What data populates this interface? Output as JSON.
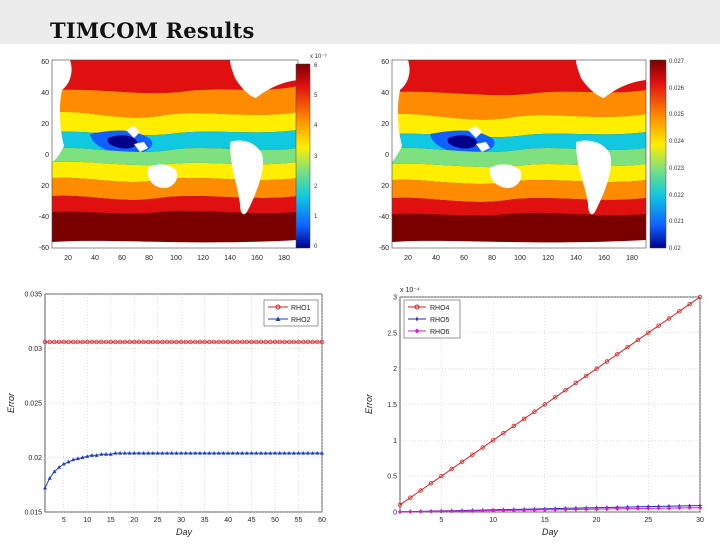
{
  "slide": {
    "title": "TIMCOM Results"
  },
  "colors": {
    "rho1": "#d62020",
    "rho2": "#1f3fbf",
    "rho4": "#d62020",
    "rho5": "#2a2ab8",
    "rho6": "#d020d0"
  },
  "maps": [
    {
      "y_ticks": [
        "60",
        "40",
        "20",
        "0",
        "20",
        "-40",
        "-60"
      ],
      "x_ticks": [
        "20",
        "40",
        "60",
        "80",
        "100",
        "120",
        "140",
        "160",
        "180"
      ],
      "colorbar_multiplier": "x 10⁻³",
      "colorbar_ticks": [
        "6",
        "5",
        "4",
        "3",
        "2",
        "1",
        "0"
      ]
    },
    {
      "y_ticks": [
        "60",
        "40",
        "20",
        "0",
        "20",
        "-40",
        "-60"
      ],
      "x_ticks": [
        "20",
        "40",
        "60",
        "80",
        "100",
        "120",
        "140",
        "160",
        "180"
      ],
      "colorbar_multiplier": "",
      "colorbar_ticks": [
        "0.027",
        "0.026",
        "0.025",
        "0.024",
        "0.023",
        "0.022",
        "0.021",
        "0.02"
      ]
    }
  ],
  "chart_data": [
    {
      "type": "line",
      "xlabel": "Day",
      "ylabel": "Error",
      "xlim": [
        1,
        60
      ],
      "ylim": [
        0.015,
        0.035
      ],
      "x_ticks": [
        5,
        10,
        15,
        20,
        25,
        30,
        35,
        40,
        45,
        50,
        55,
        60
      ],
      "y_tick_labels": [
        "0.035",
        "0.03",
        "0.025",
        "0.02",
        "0.015"
      ],
      "y_tick_values": [
        0.035,
        0.03,
        0.025,
        0.02,
        0.015
      ],
      "grid": true,
      "legend_position": "top-right",
      "x": [
        1,
        2,
        3,
        4,
        5,
        6,
        7,
        8,
        9,
        10,
        11,
        12,
        13,
        14,
        15,
        16,
        17,
        18,
        19,
        20,
        21,
        22,
        23,
        24,
        25,
        26,
        27,
        28,
        29,
        30,
        31,
        32,
        33,
        34,
        35,
        36,
        37,
        38,
        39,
        40,
        41,
        42,
        43,
        44,
        45,
        46,
        47,
        48,
        49,
        50,
        51,
        52,
        53,
        54,
        55,
        56,
        57,
        58,
        59,
        60
      ],
      "series": [
        {
          "name": "RHO1",
          "marker": "circle",
          "values": [
            0.0306,
            0.0306,
            0.0306,
            0.0306,
            0.0306,
            0.0306,
            0.0306,
            0.0306,
            0.0306,
            0.0306,
            0.0306,
            0.0306,
            0.0306,
            0.0306,
            0.0306,
            0.0306,
            0.0306,
            0.0306,
            0.0306,
            0.0306,
            0.0306,
            0.0306,
            0.0306,
            0.0306,
            0.0306,
            0.0306,
            0.0306,
            0.0306,
            0.0306,
            0.0306,
            0.0306,
            0.0306,
            0.0306,
            0.0306,
            0.0306,
            0.0306,
            0.0306,
            0.0306,
            0.0306,
            0.0306,
            0.0306,
            0.0306,
            0.0306,
            0.0306,
            0.0306,
            0.0306,
            0.0306,
            0.0306,
            0.0306,
            0.0306,
            0.0306,
            0.0306,
            0.0306,
            0.0306,
            0.0306,
            0.0306,
            0.0306,
            0.0306,
            0.0306,
            0.0306
          ]
        },
        {
          "name": "RHO2",
          "marker": "triangle",
          "values": [
            0.0172,
            0.0181,
            0.0187,
            0.0191,
            0.0194,
            0.0196,
            0.0198,
            0.0199,
            0.02,
            0.0201,
            0.0202,
            0.0202,
            0.0203,
            0.0203,
            0.0203,
            0.0204,
            0.0204,
            0.0204,
            0.0204,
            0.0204,
            0.0204,
            0.0204,
            0.0204,
            0.0204,
            0.0204,
            0.0204,
            0.0204,
            0.0204,
            0.0204,
            0.0204,
            0.0204,
            0.0204,
            0.0204,
            0.0204,
            0.0204,
            0.0204,
            0.0204,
            0.0204,
            0.0204,
            0.0204,
            0.0204,
            0.0204,
            0.0204,
            0.0204,
            0.0204,
            0.0204,
            0.0204,
            0.0204,
            0.0204,
            0.0204,
            0.0204,
            0.0204,
            0.0204,
            0.0204,
            0.0204,
            0.0204,
            0.0204,
            0.0204,
            0.0204,
            0.0204
          ]
        }
      ]
    },
    {
      "type": "line",
      "xlabel": "Day",
      "ylabel": "Error",
      "multiplier_label": "x 10⁻⁴",
      "xlim": [
        1,
        30
      ],
      "ylim": [
        0,
        3
      ],
      "x_ticks": [
        5,
        10,
        15,
        20,
        25,
        30
      ],
      "y_tick_labels": [
        "3",
        "2.5",
        "2",
        "1.5",
        "1",
        "0.5",
        "0"
      ],
      "y_tick_values": [
        3,
        2.5,
        2,
        1.5,
        1,
        0.5,
        0
      ],
      "grid": true,
      "legend_position": "top-left",
      "x": [
        1,
        2,
        3,
        4,
        5,
        6,
        7,
        8,
        9,
        10,
        11,
        12,
        13,
        14,
        15,
        16,
        17,
        18,
        19,
        20,
        21,
        22,
        23,
        24,
        25,
        26,
        27,
        28,
        29,
        30
      ],
      "series": [
        {
          "name": "RHO4",
          "marker": "circle",
          "values": [
            0.1,
            0.2,
            0.3,
            0.4,
            0.5,
            0.6,
            0.7,
            0.8,
            0.9,
            1.0,
            1.1,
            1.2,
            1.3,
            1.4,
            1.5,
            1.6,
            1.7,
            1.8,
            1.9,
            2.0,
            2.1,
            2.2,
            2.3,
            2.4,
            2.5,
            2.6,
            2.7,
            2.8,
            2.9,
            3.0
          ]
        },
        {
          "name": "RHO5",
          "marker": "star",
          "values": [
            0.003,
            0.006,
            0.009,
            0.012,
            0.015,
            0.018,
            0.021,
            0.024,
            0.027,
            0.03,
            0.033,
            0.036,
            0.039,
            0.042,
            0.045,
            0.048,
            0.051,
            0.054,
            0.057,
            0.06,
            0.063,
            0.066,
            0.069,
            0.072,
            0.075,
            0.078,
            0.081,
            0.084,
            0.087,
            0.09
          ]
        },
        {
          "name": "RHO6",
          "marker": "diamond",
          "values": [
            0.002,
            0.004,
            0.006,
            0.008,
            0.01,
            0.012,
            0.014,
            0.016,
            0.018,
            0.02,
            0.022,
            0.024,
            0.026,
            0.028,
            0.03,
            0.032,
            0.034,
            0.036,
            0.038,
            0.04,
            0.042,
            0.044,
            0.046,
            0.048,
            0.05,
            0.052,
            0.054,
            0.056,
            0.058,
            0.06
          ]
        }
      ]
    }
  ]
}
